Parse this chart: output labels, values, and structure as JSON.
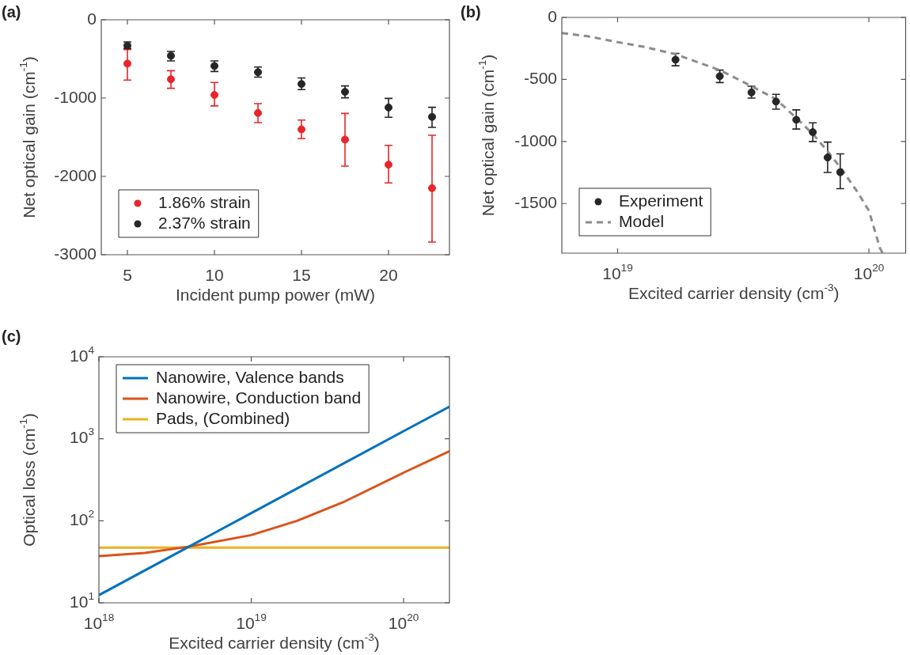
{
  "chart_data": [
    {
      "type": "scatter",
      "title": "(a)",
      "xlabel": "Incident pump power (mW)",
      "ylabel": "Net optical gain (cm$^{-1}$)",
      "xlim": [
        3.5,
        23.5
      ],
      "xticks": [
        5,
        10,
        15,
        20
      ],
      "ylim": [
        -3000,
        0
      ],
      "yticks": [
        -3000,
        -2000,
        -1000,
        0
      ],
      "legend": "bottom left",
      "marker": "circle",
      "grid": false,
      "series": [
        {
          "name": "1.86% strain",
          "color": "#e8262a",
          "x": [
            5,
            7.5,
            10,
            12.5,
            15,
            17.5,
            20,
            22.5
          ],
          "values": [
            -560,
            -760,
            -960,
            -1190,
            -1400,
            -1530,
            -1850,
            -2150
          ],
          "errors": [
            [
              -770,
              -380
            ],
            [
              -875,
              -650
            ],
            [
              -1100,
              -800
            ],
            [
              -1313,
              -1070
            ],
            [
              -1517,
              -1280
            ],
            [
              -1868,
              -1196
            ],
            [
              -2083,
              -1604
            ],
            [
              -2838,
              -1475
            ]
          ]
        },
        {
          "name": "2.37% strain",
          "color": "#262626",
          "x": [
            5,
            7.5,
            10,
            12.5,
            15,
            17.5,
            20,
            22.5
          ],
          "values": [
            -330,
            -460,
            -590,
            -670,
            -820,
            -920,
            -1120,
            -1240
          ],
          "errors": [
            [
              -366,
              -283
            ],
            [
              -525,
              -404
            ],
            [
              -660,
              -525
            ],
            [
              -732,
              -604
            ],
            [
              -891,
              -743
            ],
            [
              -996,
              -845
            ],
            [
              -1245,
              -1004
            ],
            [
              -1374,
              -1117
            ]
          ]
        }
      ]
    },
    {
      "type": "scatter",
      "title": "(b)",
      "xlabel": "Excited carrier density (cm$^{-3}$)",
      "ylabel": "Net optical gain (cm$^{-1}$)",
      "log": "x",
      "xlim": [
        6e+18,
        1.4e+20
      ],
      "xticks": [
        {
          "value": 1e+19,
          "label": "10$^{19}$"
        },
        {
          "value": 1e+20,
          "label": "10$^{20}$"
        }
      ],
      "ylim": [
        -1900,
        0
      ],
      "yticks": [
        -1500,
        -1000,
        -500,
        0
      ],
      "legend": "bottom left",
      "grid": false,
      "series": [
        {
          "name": "Experiment",
          "color": "#262626",
          "marker": "circle",
          "x": [
            1.7e+19,
            2.55e+19,
            3.41e+19,
            4.27e+19,
            5.14e+19,
            5.98e+19,
            6.85e+19,
            7.69e+19
          ],
          "values": [
            -341,
            -474,
            -605,
            -678,
            -825,
            -925,
            -1129,
            -1248
          ],
          "errors": [
            [
              -390,
              -290
            ],
            [
              -525,
              -425
            ],
            [
              -650,
              -555
            ],
            [
              -740,
              -620
            ],
            [
              -900,
              -745
            ],
            [
              -1000,
              -850
            ],
            [
              -1250,
              -1005
            ],
            [
              -1380,
              -1100
            ]
          ]
        },
        {
          "name": "Model",
          "type": "line",
          "line_style": "dashed",
          "color": "#8c8c8c",
          "x": [
            6e+18,
            7.6e+18,
            1e+19,
            1.28e+19,
            1.7e+19,
            2.55e+19,
            3.41e+19,
            4.27e+19,
            5.14e+19,
            5.98e+19,
            6.85e+19,
            7.69e+19,
            9e+19,
            1e+20,
            1.107e+20,
            1.135e+20
          ],
          "values": [
            -126,
            -152,
            -199,
            -238,
            -297,
            -425,
            -554,
            -659,
            -811,
            -939,
            -1079,
            -1208,
            -1407,
            -1558,
            -1862,
            -1900
          ]
        }
      ]
    },
    {
      "type": "line",
      "title": "(c)",
      "xlabel": "Excited carrier density (cm$^{-3}$)",
      "ylabel": "Optical loss (cm$^{-1}$)",
      "log": "xy",
      "xlim": [
        1e+18,
        2e+20
      ],
      "xticks": [
        {
          "value": 1e+18,
          "label": "10$^{18}$"
        },
        {
          "value": 1e+19,
          "label": "10$^{19}$"
        },
        {
          "value": 1e+20,
          "label": "10$^{20}$"
        }
      ],
      "ylim": [
        10,
        10000
      ],
      "yticks": [
        {
          "value": 10,
          "label": "10$^{1}$"
        },
        {
          "value": 100,
          "label": "10$^{2}$"
        },
        {
          "value": 1000,
          "label": "10$^{3}$"
        },
        {
          "value": 10000,
          "label": "10$^{4}$"
        }
      ],
      "legend": "top left",
      "grid": false,
      "series": [
        {
          "name": "Nanowire, Valence bands",
          "color": "#0072bd",
          "x": [
            1e+18,
            1e+19,
            1e+20,
            2e+20
          ],
          "values": [
            12.4,
            124,
            1240,
            2460
          ]
        },
        {
          "name": "Nanowire, Conduction band",
          "color": "#d95319",
          "x": [
            1e+18,
            2e+18,
            4e+18,
            1e+19,
            2e+19,
            4e+19,
            1e+20,
            2e+20
          ],
          "values": [
            37,
            40.6,
            48.8,
            67,
            100,
            168,
            386,
            705
          ]
        },
        {
          "name": "Pads, (Combined)",
          "color": "#edb120",
          "x": [
            1e+18,
            2e+20
          ],
          "values": [
            47,
            47
          ]
        }
      ]
    }
  ]
}
